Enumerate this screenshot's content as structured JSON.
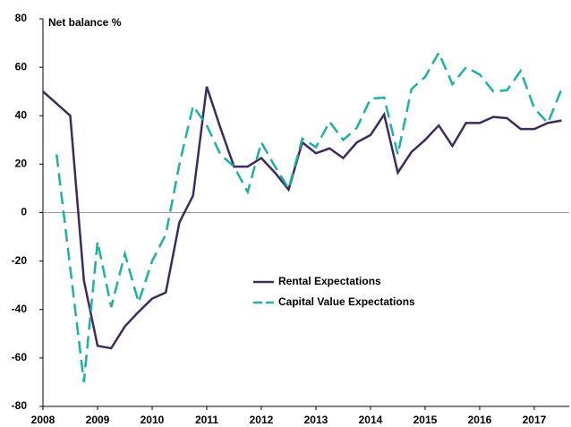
{
  "chart_data": {
    "type": "line",
    "y_label": "Net balance %",
    "x": [
      2008,
      2008.25,
      2008.5,
      2008.75,
      2009,
      2009.25,
      2009.5,
      2009.75,
      2010,
      2010.25,
      2010.5,
      2010.75,
      2011,
      2011.25,
      2011.5,
      2011.75,
      2012,
      2012.25,
      2012.5,
      2012.75,
      2013,
      2013.25,
      2013.5,
      2013.75,
      2014,
      2014.25,
      2014.5,
      2014.75,
      2015,
      2015.25,
      2015.5,
      2015.75,
      2016,
      2016.25,
      2016.5,
      2016.75,
      2017,
      2017.25,
      2017.5
    ],
    "series": [
      {
        "name": "Rental Expectations",
        "color": "#3f2a5e",
        "dash": false,
        "values": [
          50,
          45,
          40,
          -28,
          -55,
          -56,
          -47,
          -41,
          -35.5,
          -33,
          -4,
          7,
          52,
          35,
          19,
          19,
          22.5,
          16.5,
          9.5,
          29,
          24.5,
          26.5,
          22.5,
          29,
          32,
          40.5,
          16.5,
          25,
          30,
          36,
          27.5,
          37,
          37,
          39.5,
          39,
          34.5,
          34.5,
          37,
          38
        ]
      },
      {
        "name": "Capital Value Expectations",
        "color": "#1fb0a4",
        "dash": true,
        "values": [
          null,
          24,
          -23,
          -70,
          -12,
          -39,
          -17,
          -37,
          -20,
          -9,
          20,
          44,
          36,
          24,
          19,
          8.5,
          29,
          19,
          10,
          30.5,
          27,
          37.5,
          30,
          35,
          47,
          47.5,
          24,
          51,
          56,
          66,
          53,
          60,
          57,
          50,
          50.5,
          58.5,
          43,
          37,
          51
        ]
      }
    ],
    "xlim": [
      2008,
      2017.64
    ],
    "xticks": [
      2008,
      2009,
      2010,
      2011,
      2012,
      2013,
      2014,
      2015,
      2016,
      2017
    ],
    "ylim": [
      -80,
      80
    ],
    "yticks": [
      -80,
      -60,
      -40,
      -20,
      0,
      20,
      40,
      60,
      80
    ],
    "grid": false
  }
}
